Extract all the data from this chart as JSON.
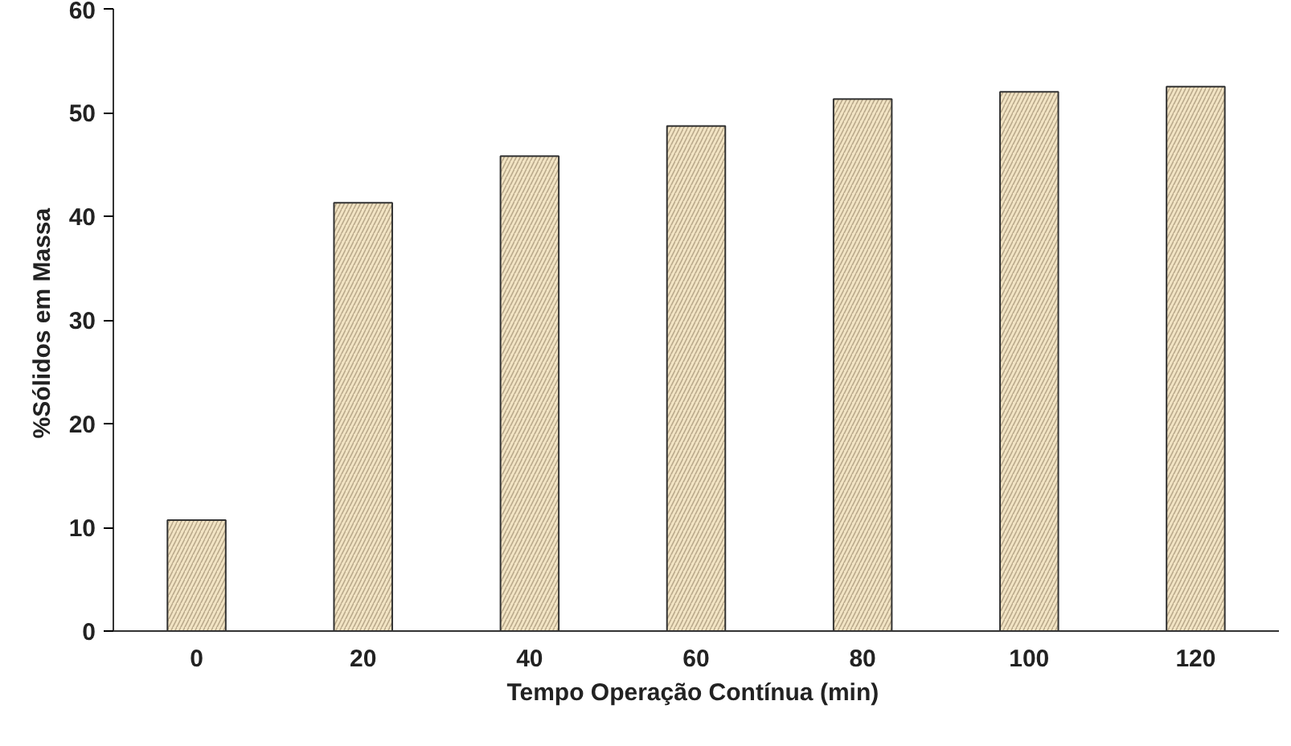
{
  "chart_data": {
    "type": "bar",
    "xlabel": "Tempo Operação Contínua  (min)",
    "ylabel": "%Sólidos  em Massa",
    "categories": [
      "0",
      "20",
      "40",
      "60",
      "80",
      "100",
      "120"
    ],
    "values": [
      10.7,
      41.3,
      45.8,
      48.7,
      51.3,
      52.0,
      52.5
    ],
    "color": "#f2e4c4",
    "ylim": [
      0,
      60
    ],
    "yticks": [
      0,
      10,
      20,
      30,
      40,
      50,
      60
    ],
    "grid": false
  }
}
